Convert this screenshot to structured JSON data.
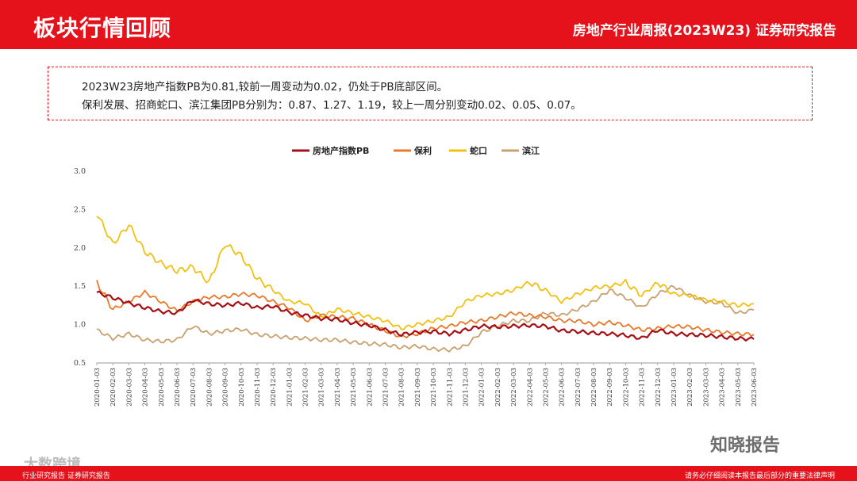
{
  "header": {
    "title": "板块行情回顾",
    "report": "房地产行业周报(2023W23)   证券研究报告"
  },
  "summary": {
    "line1": "2023W23房地产指数PB为0.81,较前一周变动为0.02，仍处于PB底部区间。",
    "line2": "保利发展、招商蛇口、滨江集团PB分别为：0.87、1.27、1.19，较上一周分别变动0.02、0.05、0.07。"
  },
  "footer": {
    "left": "行业研究报告   证券研究报告",
    "right": "请务必仔细阅读本报告最后部分的重要法律声明"
  },
  "watermark": {
    "brand": "知晓报告",
    "left": "大数跨境"
  },
  "chart_data": {
    "type": "line",
    "ylim": [
      0.5,
      3.0
    ],
    "yticks": [
      "0.5",
      "1.0",
      "1.5",
      "2.0",
      "2.5",
      "3.0"
    ],
    "legend_position": "top-center",
    "categories": [
      "2020-01-03",
      "2020-02-03",
      "2020-03-03",
      "2020-04-03",
      "2020-05-03",
      "2020-06-03",
      "2020-07-03",
      "2020-08-03",
      "2020-09-03",
      "2020-10-03",
      "2020-11-03",
      "2020-12-03",
      "2021-01-03",
      "2021-02-03",
      "2021-03-03",
      "2021-04-03",
      "2021-05-03",
      "2021-06-03",
      "2021-07-03",
      "2021-08-03",
      "2021-09-03",
      "2021-10-03",
      "2021-11-03",
      "2021-12-03",
      "2022-01-03",
      "2022-02-03",
      "2022-03-03",
      "2022-04-03",
      "2022-05-03",
      "2022-06-03",
      "2022-07-03",
      "2022-08-03",
      "2022-09-03",
      "2022-10-03",
      "2022-11-03",
      "2022-12-03",
      "2023-01-03",
      "2023-02-03",
      "2023-03-03",
      "2023-04-03",
      "2023-05-03",
      "2023-06-03"
    ],
    "series": [
      {
        "name": "房地产指数PB",
        "color": "#a50f15",
        "width": 2.2,
        "values": [
          1.42,
          1.35,
          1.28,
          1.22,
          1.17,
          1.15,
          1.32,
          1.27,
          1.25,
          1.28,
          1.22,
          1.24,
          1.16,
          1.12,
          1.08,
          1.07,
          1.02,
          0.99,
          0.93,
          0.87,
          0.9,
          0.91,
          0.88,
          0.93,
          0.98,
          0.97,
          0.98,
          0.99,
          0.98,
          0.92,
          0.91,
          0.89,
          0.88,
          0.86,
          0.82,
          0.93,
          0.88,
          0.87,
          0.86,
          0.84,
          0.82,
          0.81
        ]
      },
      {
        "name": "保利",
        "color": "#e8792b",
        "width": 1.8,
        "values": [
          1.55,
          1.2,
          1.3,
          1.42,
          1.3,
          1.18,
          1.3,
          1.36,
          1.36,
          1.4,
          1.38,
          1.3,
          1.22,
          1.05,
          1.12,
          1.1,
          1.08,
          1.0,
          0.92,
          0.84,
          0.88,
          0.95,
          0.98,
          1.03,
          1.05,
          1.1,
          1.15,
          1.12,
          1.1,
          1.05,
          1.05,
          1.0,
          1.03,
          0.99,
          0.93,
          0.95,
          0.98,
          0.97,
          0.93,
          0.9,
          0.88,
          0.87
        ]
      },
      {
        "name": "蛇口",
        "color": "#f2c010",
        "width": 1.8,
        "values": [
          2.45,
          2.05,
          2.3,
          1.95,
          1.8,
          1.7,
          1.75,
          1.55,
          2.05,
          1.9,
          1.6,
          1.45,
          1.3,
          1.28,
          1.1,
          1.2,
          1.15,
          1.1,
          1.05,
          0.95,
          1.0,
          1.05,
          1.1,
          1.3,
          1.38,
          1.4,
          1.45,
          1.55,
          1.45,
          1.3,
          1.4,
          1.48,
          1.5,
          1.55,
          1.38,
          1.55,
          1.4,
          1.38,
          1.32,
          1.3,
          1.25,
          1.27
        ]
      },
      {
        "name": "滨江",
        "color": "#c9a06e",
        "width": 1.8,
        "values": [
          0.93,
          0.82,
          0.88,
          0.8,
          0.78,
          0.8,
          0.98,
          0.88,
          0.92,
          0.94,
          0.87,
          0.85,
          0.83,
          0.82,
          0.8,
          0.8,
          0.77,
          0.75,
          0.74,
          0.7,
          0.72,
          0.68,
          0.67,
          0.72,
          0.9,
          0.98,
          1.05,
          1.05,
          1.15,
          1.12,
          1.2,
          1.3,
          1.45,
          1.35,
          1.22,
          1.4,
          1.5,
          1.38,
          1.3,
          1.28,
          1.15,
          1.19
        ]
      }
    ]
  }
}
